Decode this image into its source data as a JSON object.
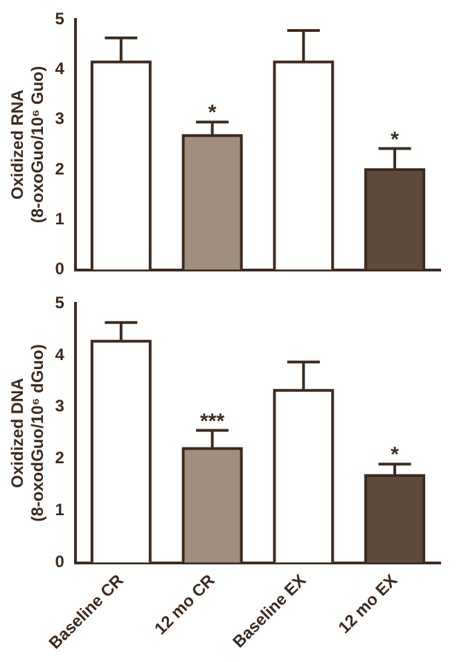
{
  "chart_data": [
    {
      "type": "bar",
      "ylabel": "Oxidized RNA\n(8-oxoGuo/10⁶ Guo)",
      "categories": [
        "Baseline CR",
        "12 mo CR",
        "Baseline EX",
        "12 mo EX"
      ],
      "values": [
        4.15,
        2.68,
        4.15,
        2.0
      ],
      "colors": [
        "#ffffff",
        "#a08e7e",
        "#ffffff",
        "#5e4b3c"
      ],
      "errors": [
        [
          4.15,
          4.63
        ],
        [
          2.68,
          2.95
        ],
        [
          4.15,
          4.78
        ],
        [
          2.0,
          2.42
        ]
      ],
      "ylim": [
        0,
        5
      ],
      "yticks": [
        0,
        1,
        2,
        3,
        4,
        5
      ],
      "grid": false,
      "tick_labels": "y",
      "annotations": [
        {
          "text": "*",
          "x": "12 mo CR",
          "y": 2.95
        },
        {
          "text": "*",
          "x": "12 mo EX",
          "y": 2.42
        }
      ]
    },
    {
      "type": "bar",
      "ylabel": "Oxidized DNA\n(8-oxodGuo/10⁶ dGuo)",
      "categories": [
        "Baseline CR",
        "12 mo CR",
        "Baseline EX",
        "12 mo EX"
      ],
      "values": [
        4.27,
        2.2,
        3.32,
        1.68
      ],
      "colors": [
        "#ffffff",
        "#a08e7e",
        "#ffffff",
        "#5e4b3c"
      ],
      "errors": [
        [
          4.27,
          4.63
        ],
        [
          2.2,
          2.55
        ],
        [
          3.32,
          3.87
        ],
        [
          1.68,
          1.9
        ]
      ],
      "ylim": [
        0,
        5
      ],
      "yticks": [
        0,
        1,
        2,
        3,
        4,
        5
      ],
      "grid": false,
      "annotations": [
        {
          "text": "***",
          "x": "12 mo CR",
          "y": 2.55
        },
        {
          "text": "*",
          "x": "12 mo EX",
          "y": 1.9
        }
      ]
    }
  ]
}
